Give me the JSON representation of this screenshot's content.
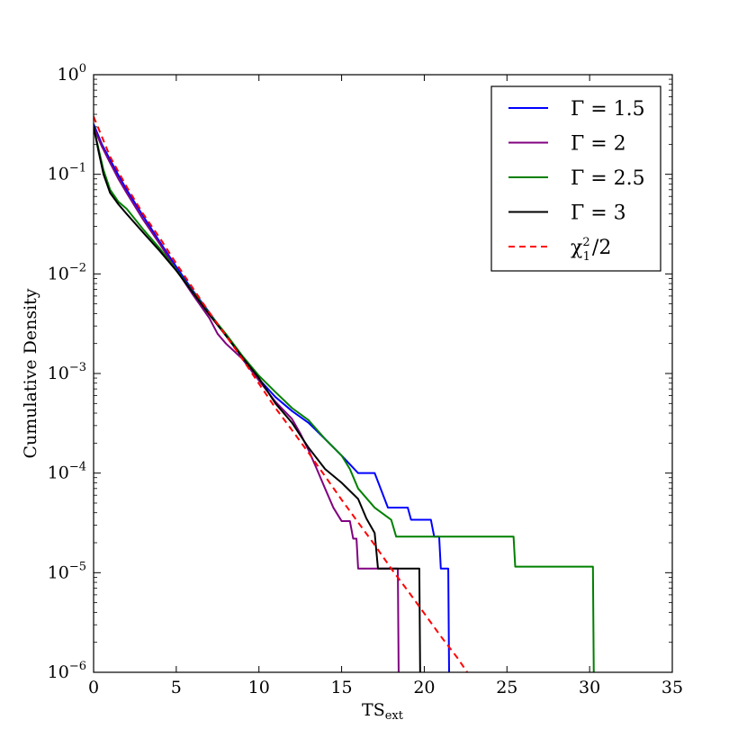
{
  "chart_data": {
    "type": "line",
    "xlabel": "TS",
    "xlabel_sub": "ext",
    "ylabel": "Cumulative Density",
    "xlim": [
      0,
      35
    ],
    "ylim": [
      1e-06,
      1
    ],
    "yscale": "log",
    "grid": false,
    "legend_position": "top-right",
    "x_ticks": [
      0,
      5,
      10,
      15,
      20,
      25,
      30,
      35
    ],
    "x_tick_labels": [
      "0",
      "5",
      "10",
      "15",
      "20",
      "25",
      "30",
      "35"
    ],
    "y_ticks": [
      1e-06,
      1e-05,
      0.0001,
      0.001,
      0.01,
      0.1,
      1
    ],
    "y_tick_labels": [
      {
        "base": "10",
        "exp": "−6"
      },
      {
        "base": "10",
        "exp": "−5"
      },
      {
        "base": "10",
        "exp": "−4"
      },
      {
        "base": "10",
        "exp": "−3"
      },
      {
        "base": "10",
        "exp": "−2"
      },
      {
        "base": "10",
        "exp": "−1"
      },
      {
        "base": "10",
        "exp": "0"
      }
    ],
    "series": [
      {
        "name": "Γ = 1.5",
        "color": "#0000ff",
        "style": "solid",
        "points": [
          [
            0,
            0.32
          ],
          [
            0.5,
            0.2
          ],
          [
            1,
            0.14
          ],
          [
            1.5,
            0.098
          ],
          [
            2,
            0.07
          ],
          [
            3,
            0.038
          ],
          [
            4,
            0.021
          ],
          [
            5,
            0.0118
          ],
          [
            6,
            0.0068
          ],
          [
            7,
            0.0041
          ],
          [
            8,
            0.0024
          ],
          [
            9,
            0.00145
          ],
          [
            10,
            0.00088
          ],
          [
            11,
            0.00058
          ],
          [
            12,
            0.00042
          ],
          [
            13,
            0.00032
          ],
          [
            14,
            0.00022
          ],
          [
            15,
            0.00015
          ],
          [
            16,
            0.0001
          ],
          [
            17,
            0.0001
          ],
          [
            17.8,
            4.5e-05
          ],
          [
            19,
            4.5e-05
          ],
          [
            19.2,
            3.4e-05
          ],
          [
            20.4,
            3.4e-05
          ],
          [
            20.6,
            2.3e-05
          ],
          [
            20.9,
            2.3e-05
          ],
          [
            21,
            1.1e-05
          ],
          [
            21.45,
            1.1e-05
          ],
          [
            21.5,
            1e-06
          ]
        ]
      },
      {
        "name": "Γ = 2",
        "color": "#800080",
        "style": "solid",
        "points": [
          [
            0,
            0.3
          ],
          [
            0.5,
            0.19
          ],
          [
            1,
            0.13
          ],
          [
            1.5,
            0.09
          ],
          [
            2,
            0.065
          ],
          [
            3,
            0.035
          ],
          [
            4,
            0.02
          ],
          [
            5,
            0.011
          ],
          [
            6,
            0.0062
          ],
          [
            7,
            0.0036
          ],
          [
            7.5,
            0.0025
          ],
          [
            8,
            0.002
          ],
          [
            9,
            0.0014
          ],
          [
            10,
            0.00085
          ],
          [
            11,
            0.00052
          ],
          [
            12,
            0.00035
          ],
          [
            12.5,
            0.00025
          ],
          [
            13,
            0.00017
          ],
          [
            13.5,
            0.00011
          ],
          [
            14,
            7e-05
          ],
          [
            14.5,
            4.5e-05
          ],
          [
            15,
            3.3e-05
          ],
          [
            15.5,
            3.3e-05
          ],
          [
            15.7,
            2.2e-05
          ],
          [
            15.9,
            2.2e-05
          ],
          [
            16,
            1.1e-05
          ],
          [
            18.4,
            1.1e-05
          ],
          [
            18.45,
            1e-06
          ]
        ]
      },
      {
        "name": "Γ = 2.5",
        "color": "#008000",
        "style": "solid",
        "points": [
          [
            0,
            0.3
          ],
          [
            0.3,
            0.18
          ],
          [
            0.6,
            0.11
          ],
          [
            1,
            0.07
          ],
          [
            1.5,
            0.053
          ],
          [
            2,
            0.045
          ],
          [
            3,
            0.028
          ],
          [
            4,
            0.018
          ],
          [
            5,
            0.011
          ],
          [
            6,
            0.0066
          ],
          [
            7,
            0.004
          ],
          [
            8,
            0.0025
          ],
          [
            9,
            0.0015
          ],
          [
            10,
            0.00095
          ],
          [
            11,
            0.00065
          ],
          [
            12,
            0.00045
          ],
          [
            13,
            0.00034
          ],
          [
            14,
            0.00022
          ],
          [
            15,
            0.00015
          ],
          [
            15.5,
            0.00011
          ],
          [
            16,
            7e-05
          ],
          [
            17,
            4.5e-05
          ],
          [
            18,
            3.4e-05
          ],
          [
            18.3,
            2.3e-05
          ],
          [
            25.4,
            2.3e-05
          ],
          [
            25.5,
            1.15e-05
          ],
          [
            30.2,
            1.15e-05
          ],
          [
            30.25,
            1e-06
          ]
        ]
      },
      {
        "name": "Γ = 3",
        "color": "#000000",
        "style": "solid",
        "points": [
          [
            0,
            0.3
          ],
          [
            0.3,
            0.17
          ],
          [
            0.6,
            0.1
          ],
          [
            1,
            0.065
          ],
          [
            1.5,
            0.05
          ],
          [
            2,
            0.04
          ],
          [
            3,
            0.026
          ],
          [
            4,
            0.017
          ],
          [
            5,
            0.0108
          ],
          [
            6,
            0.0065
          ],
          [
            7,
            0.0039
          ],
          [
            8,
            0.0024
          ],
          [
            9,
            0.00145
          ],
          [
            10,
            0.0009
          ],
          [
            11,
            0.0005
          ],
          [
            12,
            0.00032
          ],
          [
            13,
            0.00018
          ],
          [
            14,
            0.00011
          ],
          [
            15,
            8e-05
          ],
          [
            16,
            5.5e-05
          ],
          [
            16.5,
            3.5e-05
          ],
          [
            17,
            2.5e-05
          ],
          [
            17.2,
            1.1e-05
          ],
          [
            19.7,
            1.1e-05
          ],
          [
            19.75,
            1e-06
          ]
        ]
      },
      {
        "name": "χ₁²/2",
        "color": "#ff0000",
        "style": "dashed",
        "points": [
          [
            0,
            0.38
          ],
          [
            1,
            0.15
          ],
          [
            2,
            0.075
          ],
          [
            3,
            0.04
          ],
          [
            4,
            0.023
          ],
          [
            5,
            0.0127
          ],
          [
            6,
            0.0072
          ],
          [
            7,
            0.0041
          ],
          [
            8,
            0.0024
          ],
          [
            9,
            0.0014
          ],
          [
            10,
            0.00079
          ],
          [
            11,
            0.00045
          ],
          [
            12,
            0.00027
          ],
          [
            13,
            0.00016
          ],
          [
            14,
            9.3e-05
          ],
          [
            15,
            5.4e-05
          ],
          [
            16,
            3.2e-05
          ],
          [
            17,
            1.9e-05
          ],
          [
            18,
            1.1e-05
          ],
          [
            19,
            6.6e-06
          ],
          [
            20,
            3.9e-06
          ],
          [
            21,
            2.3e-06
          ],
          [
            22,
            1.4e-06
          ],
          [
            22.6,
            1e-06
          ]
        ]
      }
    ],
    "legend": [
      {
        "label": "Γ = 1.5"
      },
      {
        "label": "Γ = 2"
      },
      {
        "label": "Γ = 2.5"
      },
      {
        "label": "Γ = 3"
      },
      {
        "label_base": "χ",
        "label_sup": "2",
        "label_sub": "1",
        "label_tail": "/2"
      }
    ]
  }
}
